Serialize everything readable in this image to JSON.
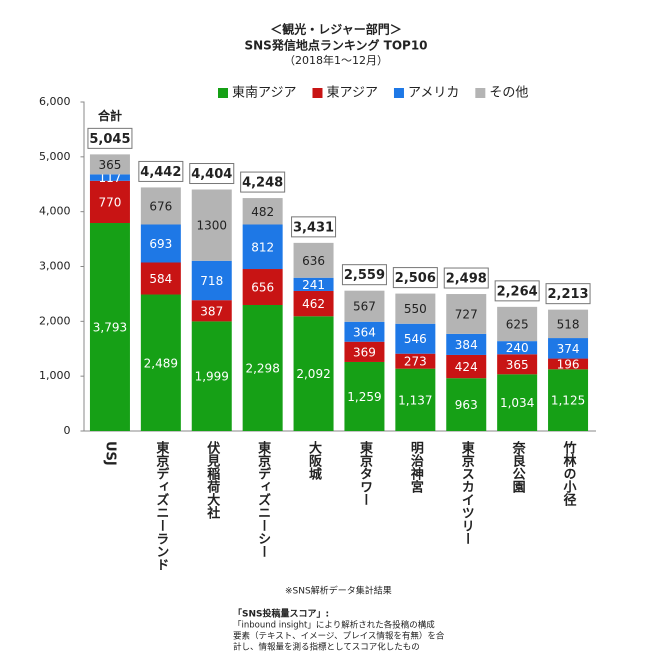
{
  "chart_data": {
    "type": "stacked-bar",
    "title": "＜観光・レジャー部門＞",
    "subtitle": "SNS発信地点ランキング TOP10",
    "period": "（2018年1～12月）",
    "categories": [
      "USJ",
      "東京ディズニーランド",
      "伏見稲荷大社",
      "東京ディズニーシー",
      "大阪城",
      "東京タワー",
      "明治神宮",
      "東京スカイツリー",
      "奈良公園",
      "竹林の小径"
    ],
    "series": [
      {
        "name": "東南アジア",
        "color": "#16a016",
        "values": [
          3793,
          2489,
          1999,
          2298,
          2092,
          1259,
          1137,
          963,
          1034,
          1125
        ],
        "value_labels": [
          "3,793",
          "2,489",
          "1,999",
          "2,298",
          "2,092",
          "1,259",
          "1,137",
          "963",
          "1,034",
          "1,125"
        ]
      },
      {
        "name": "東アジア",
        "color": "#c81414",
        "values": [
          770,
          584,
          387,
          656,
          462,
          369,
          273,
          424,
          365,
          196
        ]
      },
      {
        "name": "アメリカ",
        "color": "#1e78e6",
        "values": [
          117,
          693,
          718,
          812,
          241,
          364,
          546,
          384,
          240,
          374
        ]
      },
      {
        "name": "その他",
        "color": "#b4b4b4",
        "values": [
          365,
          676,
          1300,
          482,
          636,
          567,
          550,
          727,
          625,
          518
        ]
      }
    ],
    "total_title": "合計",
    "totals": [
      5045,
      4442,
      4404,
      4248,
      3431,
      2559,
      2506,
      2498,
      2264,
      2213
    ],
    "total_labels": [
      "5,045",
      "4,442",
      "4,404",
      "4,248",
      "3,431",
      "2,559",
      "2,506",
      "2,498",
      "2,264",
      "2,213"
    ],
    "ylim": [
      0,
      6000
    ],
    "yticks": [
      0,
      {
        "value": 1000,
        "label": "1,000"
      },
      {
        "value": 2000,
        "label": "2,000"
      },
      {
        "value": 3000,
        "label": "3,000"
      },
      {
        "value": 4000,
        "label": "4,000"
      },
      {
        "value": 5000,
        "label": "5,000"
      },
      {
        "value": 6000,
        "label": "6,000"
      }
    ],
    "grid": false,
    "source": "※SNS解析データ集計結果",
    "notes": [
      "「SNS投稿量スコア」:",
      "「inbound insight」により解析された各投稿の構成",
      "要素（テキスト、イメージ、プレイス情報を有無）を合",
      "計し、情報量を測る指標としてスコア化したもの"
    ]
  }
}
